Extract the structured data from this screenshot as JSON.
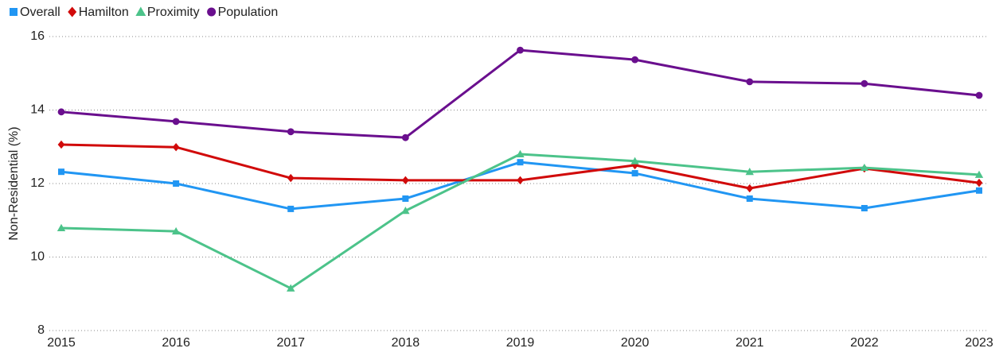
{
  "chart_data": {
    "type": "line",
    "y_label": "Non-Residential (%)",
    "categories": [
      "2015",
      "2016",
      "2017",
      "2018",
      "2019",
      "2020",
      "2021",
      "2022",
      "2023"
    ],
    "series": [
      {
        "name": "Overall",
        "color": "#2196f3",
        "marker": "square",
        "values": [
          12.32,
          12.0,
          11.31,
          11.59,
          12.58,
          12.28,
          11.59,
          11.33,
          11.81
        ]
      },
      {
        "name": "Hamilton",
        "color": "#d10a0a",
        "marker": "diamond",
        "values": [
          13.06,
          12.99,
          12.15,
          12.09,
          12.09,
          12.5,
          11.87,
          12.41,
          12.02
        ]
      },
      {
        "name": "Proximity",
        "color": "#4cc38a",
        "marker": "triangle",
        "values": [
          10.79,
          10.7,
          9.15,
          11.26,
          12.8,
          12.61,
          12.32,
          12.43,
          12.24
        ]
      },
      {
        "name": "Population",
        "color": "#6a0f8e",
        "marker": "circle",
        "values": [
          13.95,
          13.69,
          13.41,
          13.25,
          15.63,
          15.37,
          14.77,
          14.72,
          14.4
        ]
      }
    ],
    "ylim": [
      8,
      16
    ],
    "yticks": [
      8,
      10,
      12,
      14,
      16
    ],
    "grid": true,
    "legend": "top-left"
  }
}
